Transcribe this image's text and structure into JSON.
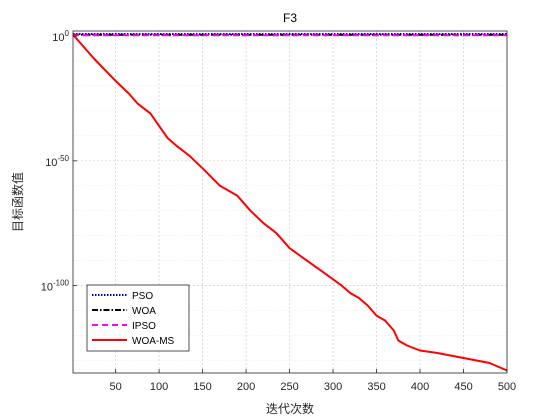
{
  "chart_data": {
    "type": "line",
    "title": "F3",
    "xlabel": "迭代次数",
    "ylabel": "目标函数值",
    "xlim": [
      1,
      500
    ],
    "ylim_exp": [
      -135,
      2
    ],
    "y_scale": "log",
    "x_ticks": [
      50,
      100,
      150,
      200,
      250,
      300,
      350,
      400,
      450,
      500
    ],
    "y_ticks": [
      {
        "exp": 0,
        "label": "10",
        "sup": "0"
      },
      {
        "exp": -50,
        "label": "10",
        "sup": "-50"
      },
      {
        "exp": -100,
        "label": "10",
        "sup": "-100"
      }
    ],
    "grid": true,
    "legend_position": "bottom-left",
    "series": [
      {
        "name": "PSO",
        "color": "#0000cc",
        "dash": "dotted",
        "x": [
          1,
          500
        ],
        "log10_y": [
          0.8,
          0.8
        ]
      },
      {
        "name": "WOA",
        "color": "#000000",
        "dash": "dash-dot",
        "x": [
          1,
          500
        ],
        "log10_y": [
          0.5,
          0.5
        ]
      },
      {
        "name": "IPSO",
        "color": "#ff00ff",
        "dash": "dashed",
        "x": [
          1,
          500
        ],
        "log10_y": [
          0.3,
          0.3
        ]
      },
      {
        "name": "WOA-MS",
        "color": "#ff0000",
        "dash": "solid",
        "x": [
          1,
          10,
          25,
          50,
          65,
          75,
          90,
          100,
          110,
          120,
          135,
          150,
          170,
          190,
          205,
          220,
          235,
          250,
          270,
          290,
          310,
          320,
          330,
          340,
          350,
          360,
          370,
          375,
          385,
          400,
          420,
          450,
          480,
          500
        ],
        "log10_y": [
          0.5,
          -3,
          -9,
          -18,
          -23,
          -27,
          -31,
          -36,
          -41,
          -44,
          -48,
          -53,
          -60,
          -64,
          -70,
          -75,
          -79,
          -85,
          -90,
          -95,
          -100,
          -103,
          -105,
          -108,
          -112,
          -114,
          -118,
          -122,
          -124,
          -126,
          -127,
          -129,
          -131,
          -134
        ]
      }
    ]
  }
}
